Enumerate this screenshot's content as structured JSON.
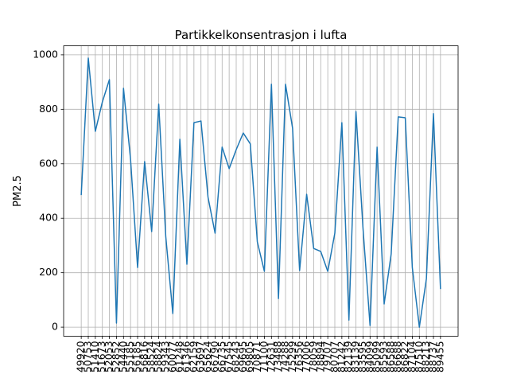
{
  "chart_data": {
    "type": "line",
    "title": "Partikkelkonsentrasjon i lufta",
    "y_label": "PM2.5",
    "categories": [
      "49920",
      "50753",
      "51410",
      "51673",
      "52053",
      "52852",
      "54440",
      "55185",
      "56185",
      "56816",
      "58524",
      "58824",
      "59343",
      "60077",
      "61248",
      "61346",
      "62159",
      "63697",
      "65624",
      "66790",
      "66735",
      "67545",
      "68243",
      "69695",
      "69805",
      "70871",
      "71100",
      "72631",
      "73488",
      "74288",
      "75299",
      "76356",
      "77006",
      "78059",
      "78894",
      "79707",
      "80707",
      "81242",
      "82139",
      "83139",
      "83595",
      "84099",
      "85099",
      "85593",
      "86588",
      "86688",
      "86822",
      "87104",
      "87510",
      "88213",
      "88737",
      "89455"
    ],
    "series": [
      {
        "name": "PM2.5",
        "color": "#1f77b4",
        "values": [
          485,
          988,
          719,
          827,
          909,
          15,
          877,
          617,
          219,
          608,
          351,
          819,
          333,
          50,
          690,
          231,
          751,
          757,
          477,
          345,
          661,
          582,
          652,
          713,
          673,
          313,
          205,
          892,
          105,
          892,
          731,
          208,
          488,
          289,
          278,
          205,
          345,
          751,
          26,
          792,
          363,
          6,
          661,
          85,
          269,
          772,
          769,
          219,
          0,
          178,
          784,
          140
        ]
      }
    ],
    "ylim": [
      -33,
      1033
    ],
    "yticks": [
      0,
      200,
      400,
      600,
      800,
      1000
    ],
    "grid": true
  }
}
